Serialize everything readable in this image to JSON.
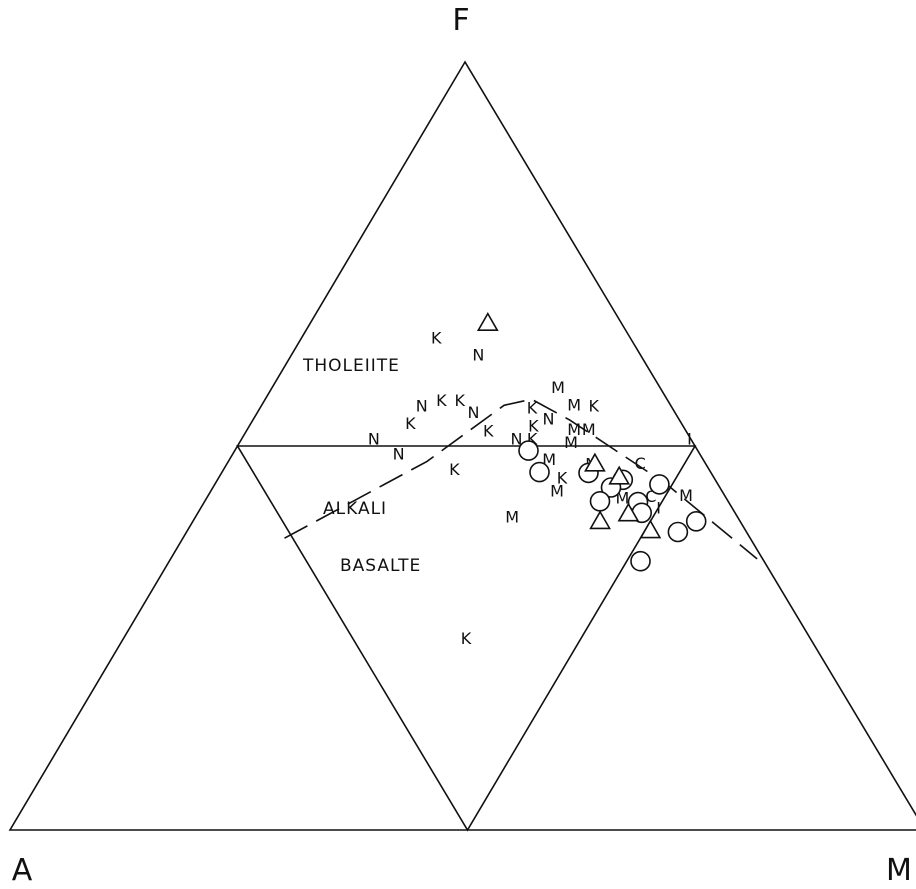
{
  "chart_data": {
    "type": "ternary",
    "vertices": {
      "top": "F",
      "bottom_left": "A",
      "bottom_right": "M"
    },
    "region_labels": [
      "THOLEIITE",
      "ALKALI",
      "BASALTE"
    ],
    "symbols": {
      "letters": [
        "K",
        "N",
        "M",
        "I",
        "C"
      ],
      "shapes": [
        "circle",
        "triangle"
      ]
    },
    "points": [
      {
        "s": "triangle",
        "F": 0.66,
        "A": 0.146
      },
      {
        "s": "K",
        "F": 0.641,
        "A": 0.212
      },
      {
        "s": "N",
        "F": 0.619,
        "A": 0.177
      },
      {
        "s": "M",
        "F": 0.577,
        "A": 0.111
      },
      {
        "s": "M",
        "F": 0.554,
        "A": 0.105
      },
      {
        "s": "K",
        "F": 0.553,
        "A": 0.084
      },
      {
        "s": "N",
        "F": 0.553,
        "A": 0.272
      },
      {
        "s": "K",
        "F": 0.56,
        "A": 0.247
      },
      {
        "s": "K",
        "F": 0.56,
        "A": 0.227
      },
      {
        "s": "N",
        "F": 0.544,
        "A": 0.22
      },
      {
        "s": "K",
        "F": 0.55,
        "A": 0.153
      },
      {
        "s": "N",
        "F": 0.536,
        "A": 0.142
      },
      {
        "s": "K",
        "F": 0.53,
        "A": 0.296
      },
      {
        "s": "K",
        "F": 0.52,
        "A": 0.216
      },
      {
        "s": "K",
        "F": 0.527,
        "A": 0.163
      },
      {
        "s": "M",
        "F": 0.522,
        "A": 0.121
      },
      {
        "s": "M",
        "F": 0.522,
        "A": 0.105
      },
      {
        "s": "N",
        "F": 0.51,
        "A": 0.346
      },
      {
        "s": "N",
        "F": 0.51,
        "A": 0.19
      },
      {
        "s": "K",
        "F": 0.51,
        "A": 0.173
      },
      {
        "s": "M",
        "F": 0.505,
        "A": 0.133
      },
      {
        "s": "I",
        "F": 0.51,
        "A": 0.001
      },
      {
        "s": "N",
        "F": 0.49,
        "A": 0.329
      },
      {
        "s": "M",
        "F": 0.483,
        "A": 0.168
      },
      {
        "s": "M",
        "F": 0.477,
        "A": 0.124
      },
      {
        "s": "C",
        "F": 0.478,
        "A": 0.071
      },
      {
        "s": "K",
        "F": 0.459,
        "A": 0.166
      },
      {
        "s": "K",
        "F": 0.47,
        "A": 0.278
      },
      {
        "s": "M",
        "F": 0.442,
        "A": 0.18
      },
      {
        "s": "M",
        "F": 0.408,
        "A": 0.246
      },
      {
        "s": "M",
        "F": 0.436,
        "A": 0.042
      },
      {
        "s": "C",
        "F": 0.435,
        "A": 0.081
      },
      {
        "s": "I",
        "F": 0.407,
        "A": 0.049
      },
      {
        "s": "M",
        "F": 0.433,
        "A": 0.113
      },
      {
        "s": "I",
        "F": 0.42,
        "A": 0.08
      },
      {
        "s": "circle",
        "F": 0.494,
        "A": 0.185
      },
      {
        "s": "circle",
        "F": 0.466,
        "A": 0.187
      },
      {
        "s": "circle",
        "F": 0.465,
        "A": 0.134
      },
      {
        "s": "circle",
        "F": 0.456,
        "A": 0.101
      },
      {
        "s": "circle",
        "F": 0.446,
        "A": 0.119
      },
      {
        "s": "circle",
        "F": 0.45,
        "A": 0.064
      },
      {
        "s": "circle",
        "F": 0.428,
        "A": 0.14
      },
      {
        "s": "circle",
        "F": 0.427,
        "A": 0.099
      },
      {
        "s": "circle",
        "F": 0.413,
        "A": 0.102
      },
      {
        "s": "circle",
        "F": 0.402,
        "A": 0.048
      },
      {
        "s": "circle",
        "F": 0.388,
        "A": 0.075
      },
      {
        "s": "circle",
        "F": 0.35,
        "A": 0.135
      },
      {
        "s": "triangle",
        "F": 0.477,
        "A": 0.121
      },
      {
        "s": "triangle",
        "F": 0.46,
        "A": 0.103
      },
      {
        "s": "triangle",
        "F": 0.412,
        "A": 0.117
      },
      {
        "s": "triangle",
        "F": 0.402,
        "A": 0.153
      },
      {
        "s": "triangle",
        "F": 0.39,
        "A": 0.104
      }
    ],
    "k_lower": {
      "s": "K",
      "F": 0.25,
      "A": 0.376
    },
    "dividing_curve": [
      {
        "F": 0.38,
        "A": 0.509
      },
      {
        "F": 0.48,
        "A": 0.303
      },
      {
        "F": 0.553,
        "A": 0.182
      },
      {
        "F": 0.561,
        "A": 0.148
      },
      {
        "F": 0.534,
        "A": 0.12
      },
      {
        "F": 0.45,
        "A": 0.056
      },
      {
        "F": 0.353,
        "A": 0.006
      }
    ]
  }
}
